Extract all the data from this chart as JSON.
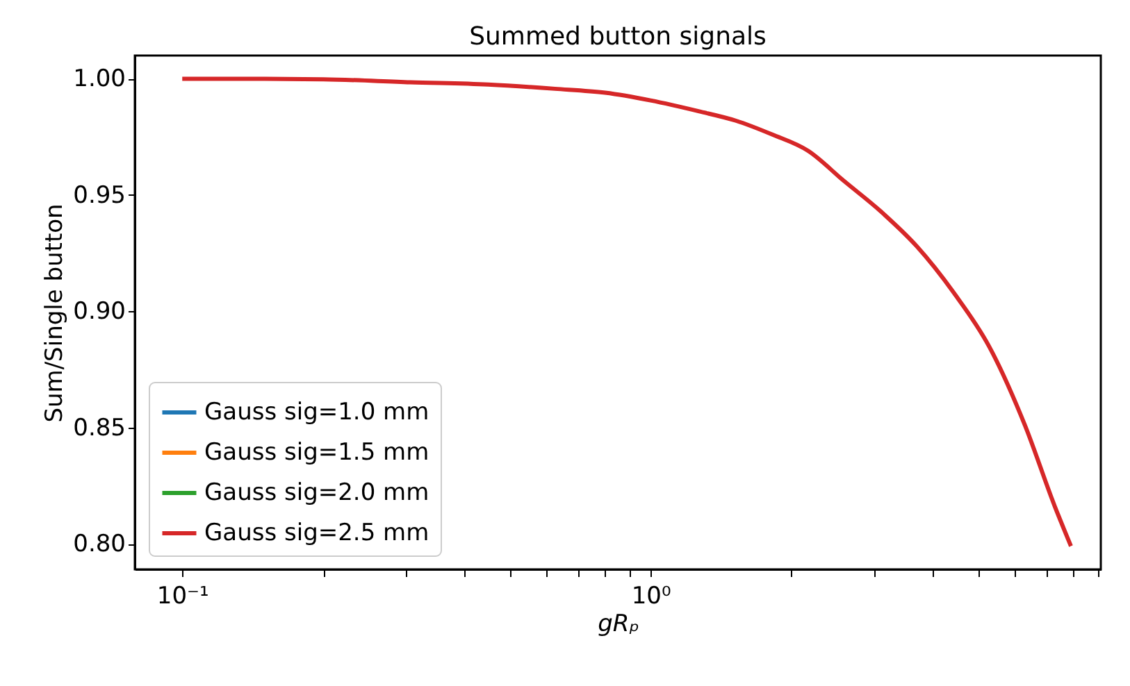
{
  "chart_data": {
    "type": "line",
    "title": "Summed button signals",
    "xlabel": "gRₚ",
    "ylabel": "Sum/Single button",
    "log": "x",
    "grid": false,
    "legend": "bottom left",
    "line_style": "solid",
    "marker": "none",
    "x": [
      0.1,
      0.15,
      0.2,
      0.307,
      0.45,
      0.625,
      0.8,
      1.0,
      1.27,
      1.52,
      1.82,
      2.17,
      2.59,
      3.1,
      3.7,
      4.44,
      5.28,
      6.3,
      7.3,
      7.9
    ],
    "xlim": [
      0.0792,
      9.15
    ],
    "xticks": [
      {
        "value": 0.1,
        "label": "10⁻¹"
      },
      {
        "value": 0.2,
        "label": null
      },
      {
        "value": 0.3,
        "label": null
      },
      {
        "value": 0.4,
        "label": null
      },
      {
        "value": 0.5,
        "label": null
      },
      {
        "value": 0.6,
        "label": null
      },
      {
        "value": 0.7,
        "label": null
      },
      {
        "value": 0.8,
        "label": null
      },
      {
        "value": 0.9,
        "label": null
      },
      {
        "value": 1,
        "label": "10⁰"
      },
      {
        "value": 2,
        "label": null
      },
      {
        "value": 3,
        "label": null
      },
      {
        "value": 4,
        "label": null
      },
      {
        "value": 5,
        "label": null
      },
      {
        "value": 6,
        "label": null
      },
      {
        "value": 7,
        "label": null
      },
      {
        "value": 8,
        "label": null
      },
      {
        "value": 9,
        "label": null
      }
    ],
    "ylim": [
      0.789,
      1.01
    ],
    "yticks": [
      {
        "value": 0.8,
        "label": "0.80"
      },
      {
        "value": 0.85,
        "label": "0.85"
      },
      {
        "value": 0.9,
        "label": "0.90"
      },
      {
        "value": 0.95,
        "label": "0.95"
      },
      {
        "value": 1.0,
        "label": "1.00"
      }
    ],
    "series": [
      {
        "name": "Gauss sig=1.0 mm",
        "color": "#1f77b4",
        "values": [
          null,
          null,
          null,
          null,
          null,
          null,
          null,
          null,
          null,
          null,
          null,
          null,
          null,
          null,
          null,
          null,
          null,
          null,
          null,
          null
        ]
      },
      {
        "name": "Gauss sig=1.5 mm",
        "color": "#ff7f0e",
        "values": [
          null,
          null,
          null,
          null,
          null,
          null,
          null,
          null,
          null,
          null,
          null,
          null,
          null,
          null,
          null,
          null,
          null,
          null,
          null,
          null
        ]
      },
      {
        "name": "Gauss sig=2.0 mm",
        "color": "#2ca02c",
        "values": [
          null,
          null,
          null,
          null,
          null,
          null,
          null,
          null,
          null,
          null,
          null,
          null,
          null,
          null,
          null,
          null,
          null,
          null,
          null,
          null
        ]
      },
      {
        "name": "Gauss sig=2.5 mm",
        "color": "#d62728",
        "values": [
          1.0,
          1.0,
          0.9998,
          0.9985,
          0.9975,
          0.9957,
          0.994,
          0.9907,
          0.986,
          0.982,
          0.976,
          0.969,
          0.956,
          0.943,
          0.928,
          0.908,
          0.885,
          0.851,
          0.816,
          0.799
        ]
      }
    ]
  }
}
